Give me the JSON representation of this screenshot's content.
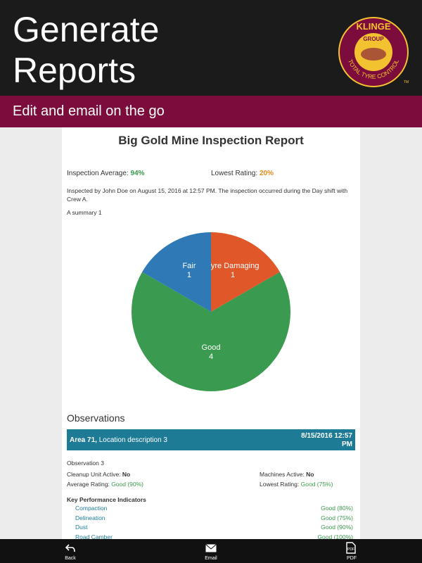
{
  "header": {
    "title_lines": [
      "Generate",
      "Reports"
    ],
    "subtitle": "Edit and email on the go",
    "logo": {
      "brand": "KLINGE",
      "group": "GROUP",
      "tagline": "TOTAL TYRE CONTROL",
      "tm": "TM"
    }
  },
  "report": {
    "title": "Big Gold Mine Inspection Report",
    "average_label": "Inspection Average:",
    "average_value": "94%",
    "lowest_label": "Lowest Rating:",
    "lowest_value": "20%",
    "description": "Inspected by John Doe on August 15, 2016 at 12:57 PM. The inspection occurred during the Day shift with Crew A.",
    "summary": "A summary 1",
    "chart": {
      "type": "pie",
      "categories": [
        "Tyre Damaging",
        "Good",
        "Fair"
      ],
      "values": [
        1,
        4,
        1
      ],
      "colors": [
        "#e0572a",
        "#3a9a4f",
        "#2f79b7"
      ]
    },
    "observations": {
      "heading": "Observations",
      "area": "Area 71,",
      "location": "Location description 3",
      "date_lines": [
        "8/15/2016 12:57",
        "PM"
      ],
      "name": "Observation 3",
      "fields": [
        {
          "label": "Cleanup Unit Active:",
          "value": "No"
        },
        {
          "label": "Machines Active:",
          "value": "No"
        },
        {
          "label": "Average Rating:",
          "value": "Good (90%)"
        },
        {
          "label": "Lowest Rating:",
          "value": "Good (75%)"
        }
      ],
      "kpi_heading": "Key Performance Indicators",
      "kpis": [
        {
          "name": "Compaction",
          "value": "Good (80%)"
        },
        {
          "name": "Delineation",
          "value": "Good (75%)"
        },
        {
          "name": "Dust",
          "value": "Good (90%)"
        },
        {
          "name": "Road Camber",
          "value": "Good (100%)"
        }
      ]
    }
  },
  "toolbar": [
    "Back",
    "Email",
    "PDF"
  ]
}
